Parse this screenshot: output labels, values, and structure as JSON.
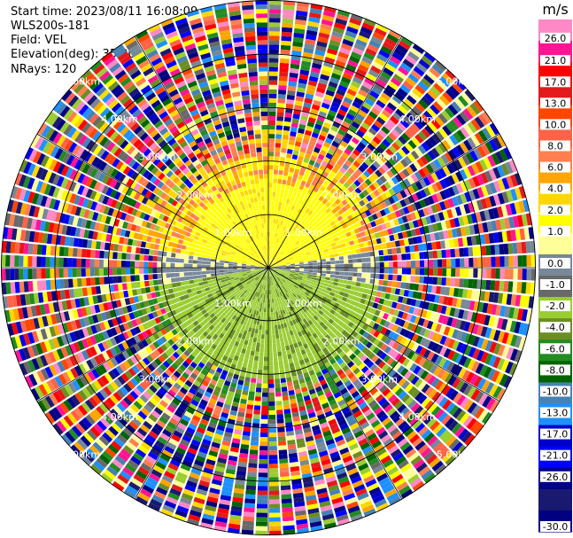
{
  "header": {
    "start_time": "Start time: 2023/08/11 16:08:09",
    "instrument": "WLS200s-181",
    "field": "Field: VEL",
    "elevation": "Elevation(deg): 35.30",
    "nrays": "NRays: 120"
  },
  "chart_data": {
    "type": "heatmap",
    "subtype": "polar-ppi",
    "field": "VEL",
    "unit": "m/s",
    "n_rays": 120,
    "range_ring_labels": [
      "1.00km",
      "2.00km",
      "3.00km",
      "4.00km",
      "5.00km"
    ],
    "colorbar": {
      "title": "m/s",
      "tick_labels": [
        "26.0",
        "21.0",
        "17.0",
        "13.0",
        "10.0",
        "8.0",
        "6.0",
        "4.0",
        "2.0",
        "1.0",
        "0.0",
        "-1.0",
        "-2.0",
        "-4.0",
        "-6.0",
        "-8.0",
        "-10.0",
        "-13.0",
        "-17.0",
        "-21.0",
        "-26.0",
        "-30.0"
      ],
      "colors": [
        "#ff88c6",
        "#ff1493",
        "#ff0000",
        "#e31a1c",
        "#ff4500",
        "#ff6347",
        "#ff7f50",
        "#ffa500",
        "#ffd700",
        "#ffff00",
        "#ffff99",
        "#778899",
        "#696969",
        "#9acd32",
        "#6b8e23",
        "#228b22",
        "#006400",
        "#4682b4",
        "#1e90ff",
        "#0000cd",
        "#0000ff",
        "#00008b",
        "#191970",
        "#000080"
      ]
    }
  }
}
